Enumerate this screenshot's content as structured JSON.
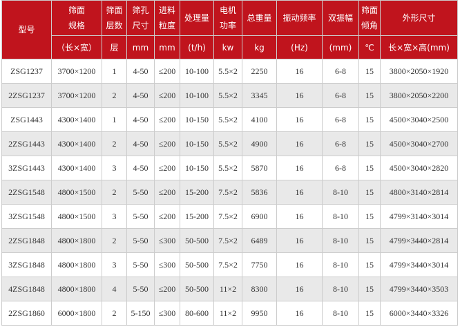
{
  "header": {
    "row1": [
      "型号",
      "筛面\n规格",
      "筛面\n层数",
      "筛孔\n尺寸",
      "进料\n粒度",
      "处理量",
      "电机\n功率",
      "总重量",
      "振动频率",
      "双振幅",
      "筛面\n倾角",
      "外形尺寸"
    ],
    "row2": [
      "（长×宽）",
      "层",
      "mm",
      "mm",
      "(t/h)",
      "kw",
      "kg",
      "(Hz)",
      "(mm)",
      "℃",
      "长×宽×高(mm)"
    ]
  },
  "rows": [
    [
      "ZSG1237",
      "3700×1200",
      "1",
      "4-50",
      "≤200",
      "10-100",
      "5.5×2",
      "2250",
      "16",
      "6-8",
      "15",
      "3800×2050×1920"
    ],
    [
      "2ZSG1237",
      "3700×1200",
      "2",
      "4-50",
      "≤200",
      "10-100",
      "5.5×2",
      "3345",
      "16",
      "6-8",
      "15",
      "3800×2050×2200"
    ],
    [
      "ZSG1443",
      "4300×1400",
      "1",
      "4-50",
      "≤200",
      "10-150",
      "5.5×2",
      "4100",
      "16",
      "6-8",
      "15",
      "4500×3040×2500"
    ],
    [
      "2ZSG1443",
      "4300×1400",
      "2",
      "4-50",
      "≤200",
      "10-150",
      "5.5×2",
      "4900",
      "16",
      "6-8",
      "15",
      "4500×3040×2700"
    ],
    [
      "3ZSG1443",
      "4300×1400",
      "3",
      "4-50",
      "≤200",
      "10-150",
      "5.5×2",
      "5870",
      "16",
      "6-8",
      "15",
      "4500×3040×2820"
    ],
    [
      "2ZSG1548",
      "4800×1500",
      "2",
      "5-50",
      "≤200",
      "15-200",
      "7.5×2",
      "5836",
      "16",
      "8-10",
      "15",
      "4800×3140×2814"
    ],
    [
      "3ZSG1548",
      "4800×1500",
      "3",
      "5-50",
      "≤200",
      "15-200",
      "7.5×2",
      "6900",
      "16",
      "8-10",
      "15",
      "4799×3140×3014"
    ],
    [
      "2ZSG1848",
      "4800×1800",
      "2",
      "5-50",
      "≤300",
      "50-500",
      "7.5×2",
      "6489",
      "16",
      "8-10",
      "15",
      "4799×3440×2814"
    ],
    [
      "3ZSG1848",
      "4800×1800",
      "3",
      "5-50",
      "≤300",
      "50-500",
      "7.5×2",
      "7750",
      "16",
      "8-10",
      "15",
      "4799×3440×3014"
    ],
    [
      "4ZSG1848",
      "4800×1800",
      "4",
      "5-50",
      "≤200",
      "50-500",
      "11×2",
      "8300",
      "16",
      "8-10",
      "15",
      "4799×3440×3503"
    ],
    [
      "2ZSG1860",
      "6000×1800",
      "2",
      "5-150",
      "≤300",
      "80-600",
      "11×2",
      "9950",
      "16",
      "8-10",
      "15",
      "6000×3440×3326"
    ]
  ],
  "colors": {
    "header_bg": "#c0141d",
    "alt_row": "#e9e9e9"
  }
}
